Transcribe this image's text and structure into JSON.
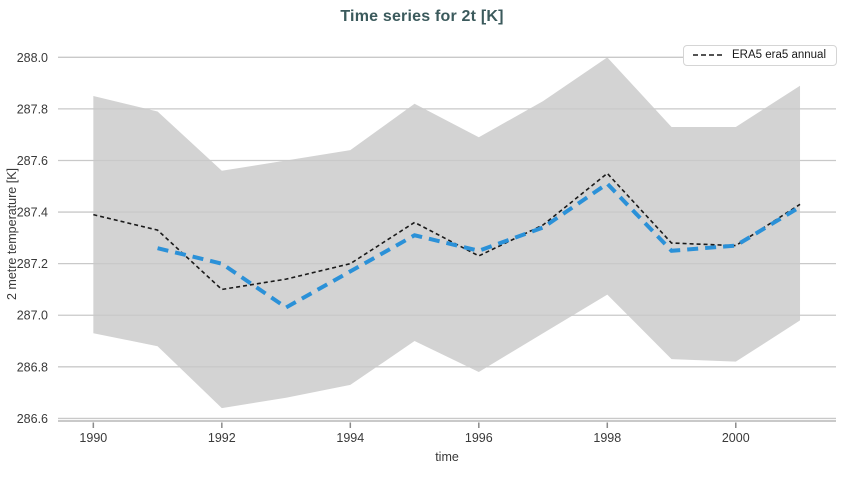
{
  "chart_data": {
    "type": "line",
    "title": "Time series for 2t [K]",
    "xlabel": "time",
    "ylabel": "2 metre temperature [K]",
    "x_ticks": [
      1990,
      1992,
      1994,
      1996,
      1998,
      2000
    ],
    "y_ticks": [
      288.0,
      287.8,
      287.6,
      287.4,
      287.2,
      287.0,
      286.8,
      286.6
    ],
    "xlim": [
      1989.45,
      2001.56
    ],
    "ylim": [
      286.59,
      288.04
    ],
    "grid": "horizontal",
    "legend_position": "upper right",
    "series": [
      {
        "name": "ERA5 era5 annual",
        "color": "#1a1a1a",
        "width": 1.6,
        "dash": "4 3",
        "x": [
          1990,
          1991,
          1992,
          1993,
          1994,
          1995,
          1996,
          1997,
          1998,
          1999,
          2000,
          2001
        ],
        "values": [
          287.39,
          287.33,
          287.1,
          287.14,
          287.2,
          287.36,
          287.23,
          287.35,
          287.55,
          287.28,
          287.27,
          287.43
        ]
      },
      {
        "name": "",
        "color": "#2b91d8",
        "width": 4,
        "dash": "11 7",
        "x": [
          1991,
          1992,
          1993,
          1994,
          1995,
          1996,
          1997,
          1998,
          1999,
          2000,
          2001
        ],
        "values": [
          287.26,
          287.2,
          287.03,
          287.17,
          287.31,
          287.25,
          287.34,
          287.51,
          287.25,
          287.27,
          287.42
        ]
      }
    ],
    "band": {
      "x": [
        1990,
        1991,
        1992,
        1993,
        1994,
        1995,
        1996,
        1997,
        1998,
        1999,
        2000,
        2001
      ],
      "upper": [
        287.85,
        287.79,
        287.56,
        287.6,
        287.64,
        287.82,
        287.69,
        287.83,
        288.0,
        287.73,
        287.73,
        287.89
      ],
      "lower": [
        286.93,
        286.88,
        286.64,
        286.68,
        286.73,
        286.9,
        286.78,
        286.93,
        287.08,
        286.83,
        286.82,
        286.98
      ]
    }
  },
  "legend": {
    "items": [
      {
        "label": "ERA5 era5 annual",
        "line_style": "dashed-black"
      }
    ]
  },
  "colors": {
    "title": "#3b5a5c",
    "band": "#d3d3d3",
    "gridline": "#c9c9c9",
    "axis_line": "#c9c9c9",
    "tick_mark": "#8a8a8a",
    "tick_label": "#3a3a3a",
    "series_black": "#1a1a1a",
    "series_blue": "#2b91d8"
  }
}
